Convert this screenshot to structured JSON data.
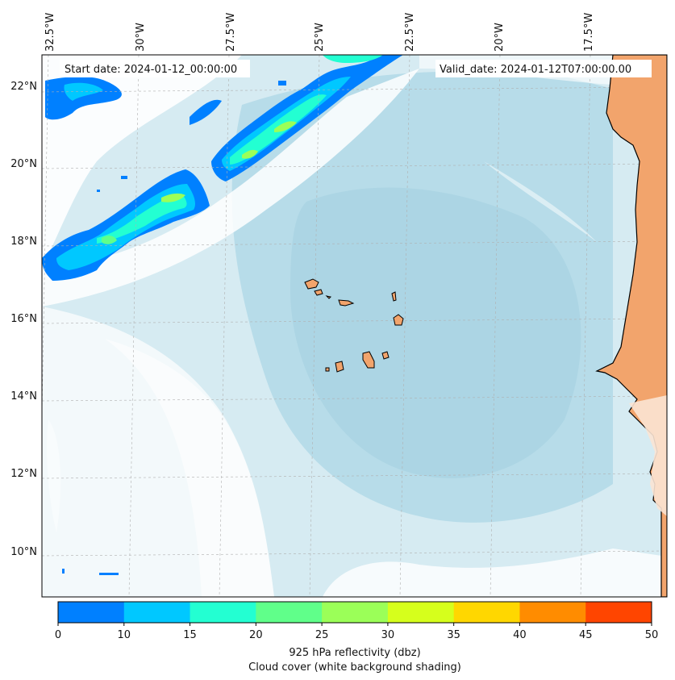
{
  "header": {
    "start_date": "Start date: 2024-01-12_00:00:00",
    "valid_date": "Valid_date: 2024-01-12T07:00:00.00"
  },
  "map": {
    "lon_labels": [
      "32.5°W",
      "30°W",
      "27.5°W",
      "25°W",
      "22.5°W",
      "20°W",
      "17.5°W"
    ],
    "lat_labels": [
      "22°N",
      "20°N",
      "18°N",
      "16°N",
      "14°N",
      "12°N",
      "10°N"
    ],
    "colors": {
      "ocean_base": "#d8ecf2",
      "ocean_deep": "#aed7e5",
      "cloud": "#ffffff",
      "land": "#f2a46c",
      "coast": "#000000",
      "grid": "#b0b0b0"
    }
  },
  "colorbar": {
    "ticks": [
      "0",
      "10",
      "15",
      "20",
      "25",
      "30",
      "35",
      "40",
      "45",
      "50"
    ],
    "colors": [
      "#0080ff",
      "#00c8ff",
      "#23ffd2",
      "#60ff8a",
      "#9bff58",
      "#d6ff1c",
      "#ffd700",
      "#ff8c00",
      "#ff4500"
    ],
    "label_line1": "925 hPa reflectivity (dbz)",
    "label_line2": "Cloud cover (white background shading)"
  }
}
